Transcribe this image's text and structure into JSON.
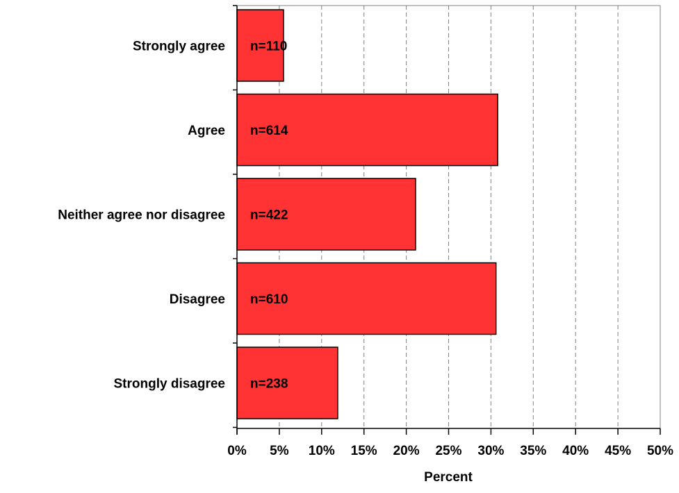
{
  "chart_data": {
    "type": "bar",
    "orientation": "horizontal",
    "categories": [
      "Strongly agree",
      "Agree",
      "Neither agree nor disagree",
      "Disagree",
      "Strongly disagree"
    ],
    "values": [
      5.5,
      30.8,
      21.1,
      30.6,
      11.9
    ],
    "data_labels": [
      "n=110",
      "n=614",
      "n=422",
      "n=610",
      "n=238"
    ],
    "xlabel": "Percent",
    "ylabel": "",
    "title": "",
    "xlim": [
      0,
      50
    ],
    "x_ticks": [
      0,
      5,
      10,
      15,
      20,
      25,
      30,
      35,
      40,
      45,
      50
    ],
    "x_tick_labels": [
      "0%",
      "5%",
      "10%",
      "15%",
      "20%",
      "25%",
      "30%",
      "35%",
      "40%",
      "45%",
      "50%"
    ],
    "grid": "vertical dashed",
    "legend": "none",
    "bar_color": "#ff3333",
    "bar_edge_color": "#000000",
    "grid_color": "#808080"
  }
}
